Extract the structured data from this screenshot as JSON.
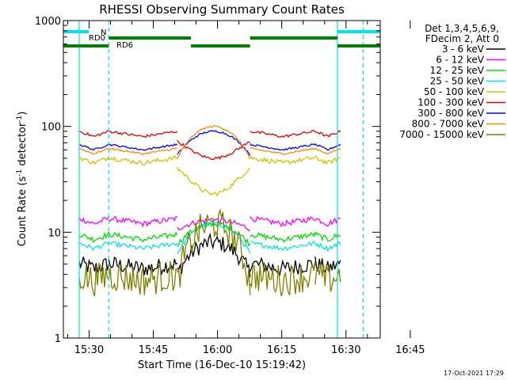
{
  "chart_data": {
    "type": "line",
    "title": "RHESSI Observing Summary Count Rates",
    "xlabel": "Start Time (16-Dec-10 15:19:42)",
    "ylabel_main": "Count Rate (s",
    "ylabel_sup1": "-1",
    "ylabel_mid": " detector",
    "ylabel_sup2": "-1",
    "ylabel_end": ")",
    "yscale": "log",
    "ylim": [
      1,
      1000
    ],
    "xlim_minutes": [
      -6,
      68
    ],
    "x_ticks": [
      {
        "label": "15:30",
        "min": 0
      },
      {
        "label": "15:45",
        "min": 15
      },
      {
        "label": "16:00",
        "min": 30
      },
      {
        "label": "16:15",
        "min": 45
      },
      {
        "label": "16:30",
        "min": 60
      },
      {
        "label": "16:45",
        "min": 75
      }
    ],
    "y_ticks": [
      {
        "label": "1",
        "value": 1
      },
      {
        "label": "10",
        "value": 10
      },
      {
        "label": "100",
        "value": 100
      },
      {
        "label": "1000",
        "value": 1000
      }
    ],
    "legend_header": [
      "Det 1,3,4,5,6,9,",
      "FDecim 2, Att 0"
    ],
    "series": [
      {
        "name": "3 - 6 keV",
        "color": "#000000",
        "level": 4.5,
        "peak": 8
      },
      {
        "name": "6 - 12 keV",
        "color": "#ff00ff",
        "level": 12,
        "peak": 13
      },
      {
        "name": "12 - 25 keV",
        "color": "#00dd00",
        "level": 8.5,
        "peak": 12
      },
      {
        "name": "25 - 50 keV",
        "color": "#00e5e5",
        "level": 7,
        "peak": 12
      },
      {
        "name": "50 - 100 keV",
        "color": "#c8c800",
        "level": 45,
        "peak": 23
      },
      {
        "name": "100 - 300 keV",
        "color": "#e00000",
        "level": 80,
        "peak": 50
      },
      {
        "name": "300 - 800 keV",
        "color": "#0000ff",
        "level": 60,
        "peak": 90
      },
      {
        "name": "800 - 7000 keV",
        "color": "#ff8c00",
        "level": 55,
        "peak": 100
      },
      {
        "name": "7000 - 15000 keV",
        "color": "#808000",
        "level": 3.5,
        "peak": 12
      }
    ],
    "flag_bars": [
      {
        "name": "N",
        "label": "N",
        "color": "#00e5e5"
      },
      {
        "name": "RD0",
        "label": "RD0",
        "color": "#008000"
      },
      {
        "name": "RD6",
        "label": "RD6",
        "color": "#008000"
      }
    ]
  },
  "footer_timestamp": "17-Oct-2021 17:29"
}
